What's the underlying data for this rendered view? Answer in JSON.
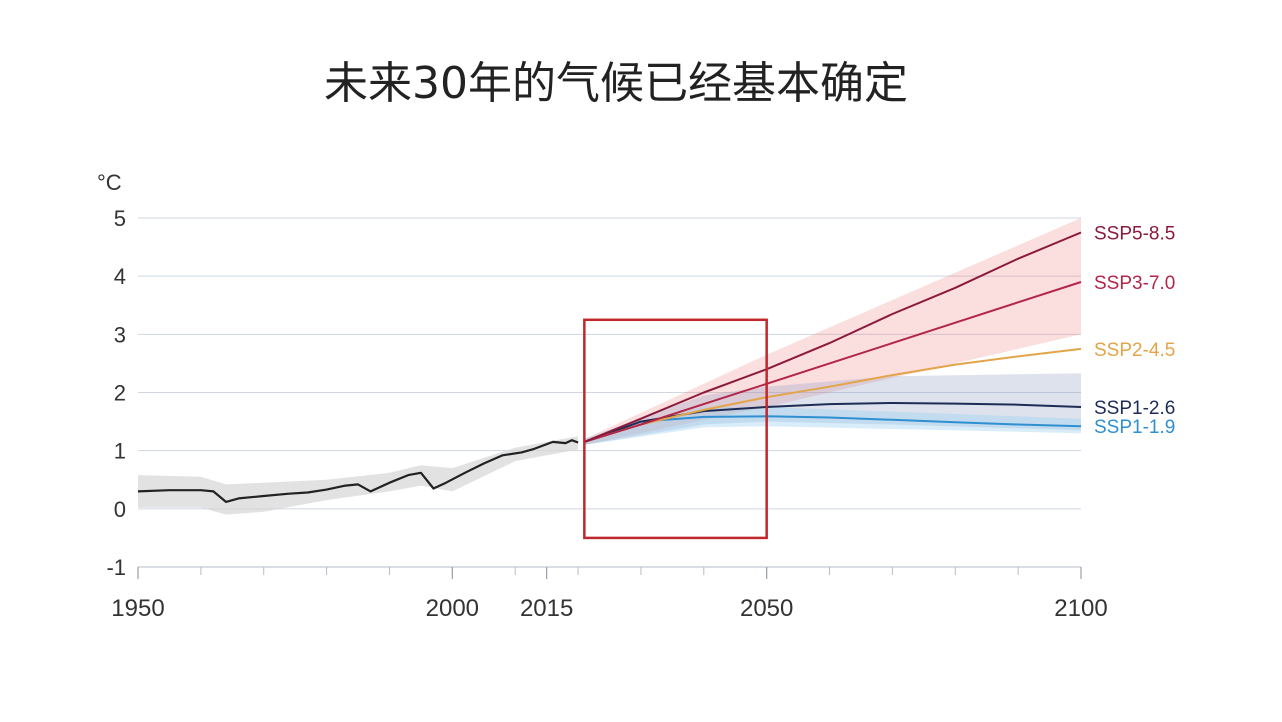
{
  "chart_data": {
    "type": "line",
    "title": "未来30年的气候已经基本确定",
    "y_unit": "°C",
    "xlim": [
      1950,
      2100
    ],
    "ylim": [
      -1,
      5
    ],
    "x_ticks": [
      1950,
      2000,
      2015,
      2050,
      2100
    ],
    "y_ticks": [
      5,
      4,
      3,
      2,
      1,
      0,
      -1
    ],
    "grid": "horizontal",
    "highlight_box": {
      "x_range": [
        2021,
        2050
      ],
      "y_range": [
        -0.5,
        3.25
      ],
      "color": "#c0282d"
    },
    "historical": {
      "color": "#222222",
      "band_color": "#d6d6d6",
      "points": [
        [
          1950,
          0.3
        ],
        [
          1955,
          0.32
        ],
        [
          1960,
          0.32
        ],
        [
          1962,
          0.3
        ],
        [
          1964,
          0.12
        ],
        [
          1966,
          0.18
        ],
        [
          1970,
          0.22
        ],
        [
          1974,
          0.26
        ],
        [
          1977,
          0.28
        ],
        [
          1980,
          0.33
        ],
        [
          1983,
          0.4
        ],
        [
          1985,
          0.42
        ],
        [
          1987,
          0.3
        ],
        [
          1990,
          0.45
        ],
        [
          1993,
          0.58
        ],
        [
          1995,
          0.62
        ],
        [
          1997,
          0.35
        ],
        [
          1999,
          0.45
        ],
        [
          2002,
          0.62
        ],
        [
          2005,
          0.78
        ],
        [
          2008,
          0.92
        ],
        [
          2011,
          0.97
        ],
        [
          2013,
          1.03
        ],
        [
          2016,
          1.15
        ],
        [
          2018,
          1.13
        ],
        [
          2019,
          1.18
        ],
        [
          2020,
          1.14
        ]
      ],
      "band_upper": [
        [
          1950,
          0.58
        ],
        [
          1960,
          0.55
        ],
        [
          1964,
          0.42
        ],
        [
          1970,
          0.45
        ],
        [
          1980,
          0.5
        ],
        [
          1990,
          0.62
        ],
        [
          1995,
          0.75
        ],
        [
          2000,
          0.7
        ],
        [
          2010,
          1.05
        ],
        [
          2020,
          1.25
        ]
      ],
      "band_lower": [
        [
          1950,
          0.02
        ],
        [
          1960,
          0.02
        ],
        [
          1964,
          -0.1
        ],
        [
          1970,
          -0.05
        ],
        [
          1980,
          0.15
        ],
        [
          1990,
          0.3
        ],
        [
          1995,
          0.4
        ],
        [
          2000,
          0.3
        ],
        [
          2010,
          0.82
        ],
        [
          2020,
          1.02
        ]
      ]
    },
    "series": [
      {
        "name": "SSP5-8.5",
        "color": "#8b1a3c",
        "points": [
          [
            2021,
            1.15
          ],
          [
            2030,
            1.55
          ],
          [
            2040,
            2.0
          ],
          [
            2050,
            2.4
          ],
          [
            2060,
            2.85
          ],
          [
            2070,
            3.35
          ],
          [
            2080,
            3.8
          ],
          [
            2090,
            4.3
          ],
          [
            2100,
            4.75
          ]
        ]
      },
      {
        "name": "SSP3-7.0",
        "color": "#b3264a",
        "points": [
          [
            2021,
            1.15
          ],
          [
            2030,
            1.45
          ],
          [
            2040,
            1.8
          ],
          [
            2050,
            2.15
          ],
          [
            2060,
            2.5
          ],
          [
            2070,
            2.85
          ],
          [
            2080,
            3.2
          ],
          [
            2090,
            3.55
          ],
          [
            2100,
            3.9
          ]
        ]
      },
      {
        "name": "SSP2-4.5",
        "color": "#e3a44a",
        "points": [
          [
            2021,
            1.15
          ],
          [
            2030,
            1.45
          ],
          [
            2040,
            1.7
          ],
          [
            2050,
            1.92
          ],
          [
            2060,
            2.1
          ],
          [
            2070,
            2.3
          ],
          [
            2080,
            2.48
          ],
          [
            2090,
            2.62
          ],
          [
            2100,
            2.75
          ]
        ]
      },
      {
        "name": "SSP1-2.6",
        "color": "#1f2d55",
        "points": [
          [
            2021,
            1.15
          ],
          [
            2030,
            1.5
          ],
          [
            2040,
            1.68
          ],
          [
            2050,
            1.75
          ],
          [
            2060,
            1.8
          ],
          [
            2070,
            1.82
          ],
          [
            2080,
            1.81
          ],
          [
            2090,
            1.79
          ],
          [
            2100,
            1.75
          ]
        ]
      },
      {
        "name": "SSP1-1.9",
        "color": "#2e8fd1",
        "points": [
          [
            2021,
            1.15
          ],
          [
            2030,
            1.5
          ],
          [
            2040,
            1.58
          ],
          [
            2050,
            1.59
          ],
          [
            2060,
            1.57
          ],
          [
            2070,
            1.53
          ],
          [
            2080,
            1.49
          ],
          [
            2090,
            1.45
          ],
          [
            2100,
            1.42
          ]
        ]
      }
    ],
    "bands": [
      {
        "color": "#f08a8a",
        "opacity": 0.28,
        "upper": [
          [
            2021,
            1.2
          ],
          [
            2050,
            2.65
          ],
          [
            2100,
            5.0
          ]
        ],
        "lower": [
          [
            2021,
            1.1
          ],
          [
            2050,
            1.75
          ],
          [
            2100,
            3.0
          ]
        ]
      },
      {
        "color": "#8fa0c4",
        "opacity": 0.3,
        "upper": [
          [
            2021,
            1.2
          ],
          [
            2040,
            1.95
          ],
          [
            2050,
            2.1
          ],
          [
            2070,
            2.28
          ],
          [
            2100,
            2.33
          ]
        ],
        "lower": [
          [
            2021,
            1.1
          ],
          [
            2040,
            1.45
          ],
          [
            2050,
            1.5
          ],
          [
            2070,
            1.45
          ],
          [
            2100,
            1.35
          ]
        ]
      },
      {
        "color": "#9dd1f0",
        "opacity": 0.4,
        "upper": [
          [
            2021,
            1.2
          ],
          [
            2040,
            1.75
          ],
          [
            2050,
            1.75
          ],
          [
            2100,
            1.55
          ]
        ],
        "lower": [
          [
            2021,
            1.1
          ],
          [
            2040,
            1.4
          ],
          [
            2050,
            1.42
          ],
          [
            2100,
            1.3
          ]
        ]
      }
    ]
  }
}
